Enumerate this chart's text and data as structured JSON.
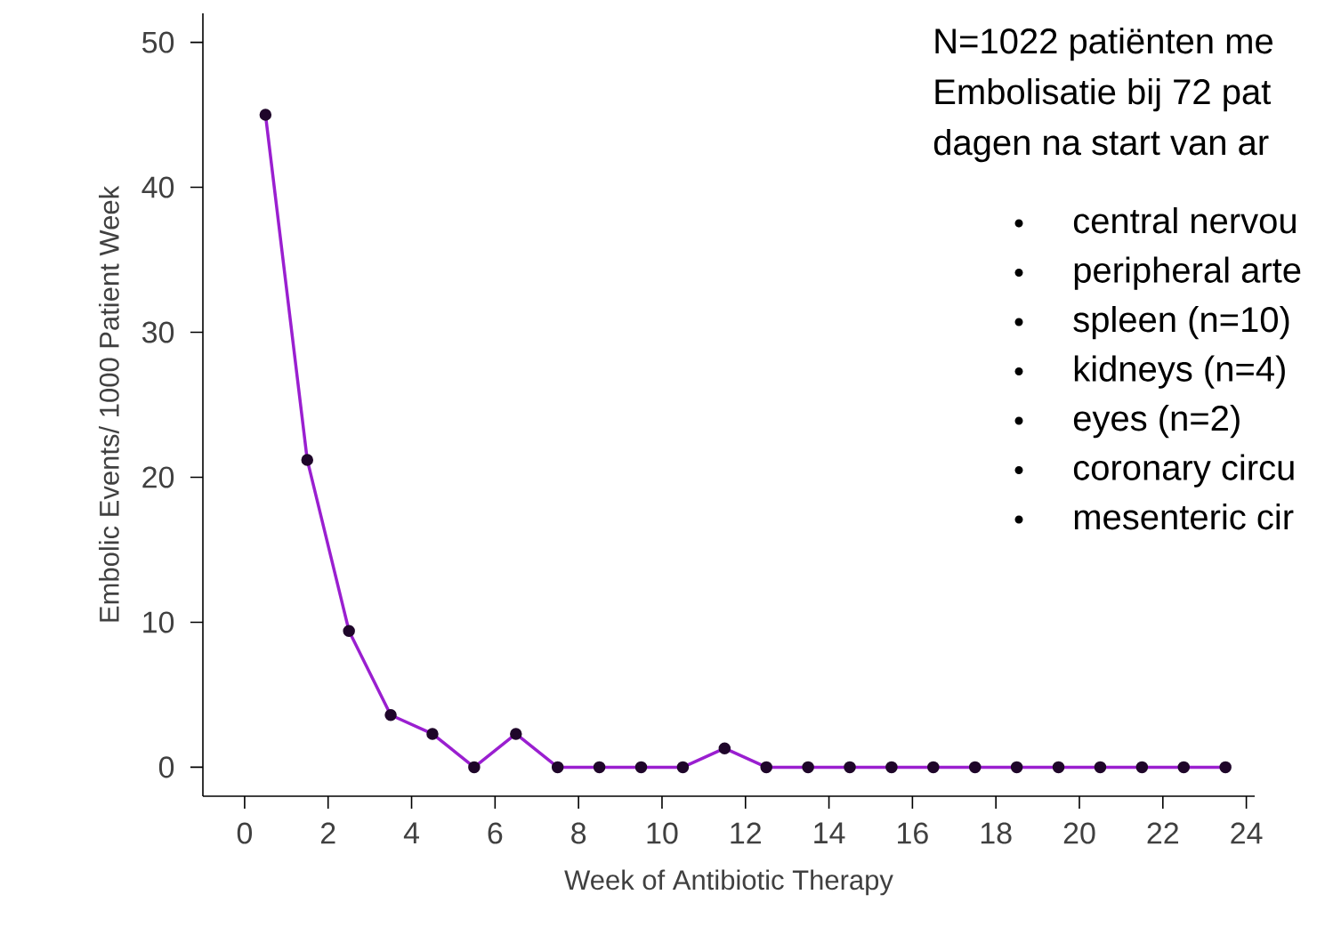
{
  "chart_data": {
    "type": "line",
    "xlabel": "Week of Antibiotic Therapy",
    "ylabel": "Embolic Events/ 1000 Patient Week",
    "x": [
      0.5,
      1.5,
      2.5,
      3.5,
      4.5,
      5.5,
      6.5,
      7.5,
      8.5,
      9.5,
      10.5,
      11.5,
      12.5,
      13.5,
      14.5,
      15.5,
      16.5,
      17.5,
      18.5,
      19.5,
      20.5,
      21.5,
      22.5,
      23.5
    ],
    "series": [
      {
        "color": "#9a1fd0",
        "values": [
          45,
          21.2,
          9.4,
          3.6,
          2.3,
          0,
          2.3,
          0,
          0,
          0,
          0,
          1.3,
          0,
          0,
          0,
          0,
          0,
          0,
          0,
          0,
          0,
          0,
          0,
          0
        ]
      }
    ],
    "xlim": [
      -1,
      24.2
    ],
    "ylim": [
      -2,
      52
    ],
    "xticks": [
      0,
      2,
      4,
      6,
      8,
      10,
      12,
      14,
      16,
      18,
      20,
      22,
      24
    ],
    "yticks": [
      0,
      10,
      20,
      30,
      40,
      50
    ],
    "marker": "circle",
    "grid": false,
    "annotations": [
      "N=1022 patiënten me",
      "Embolisatie bij 72 pat",
      "dagen na start van ar",
      "central nervou",
      "peripheral arte",
      "spleen (n=10)",
      "kidneys (n=4)",
      "eyes (n=2)",
      "coronary circu",
      "mesenteric cir"
    ]
  }
}
